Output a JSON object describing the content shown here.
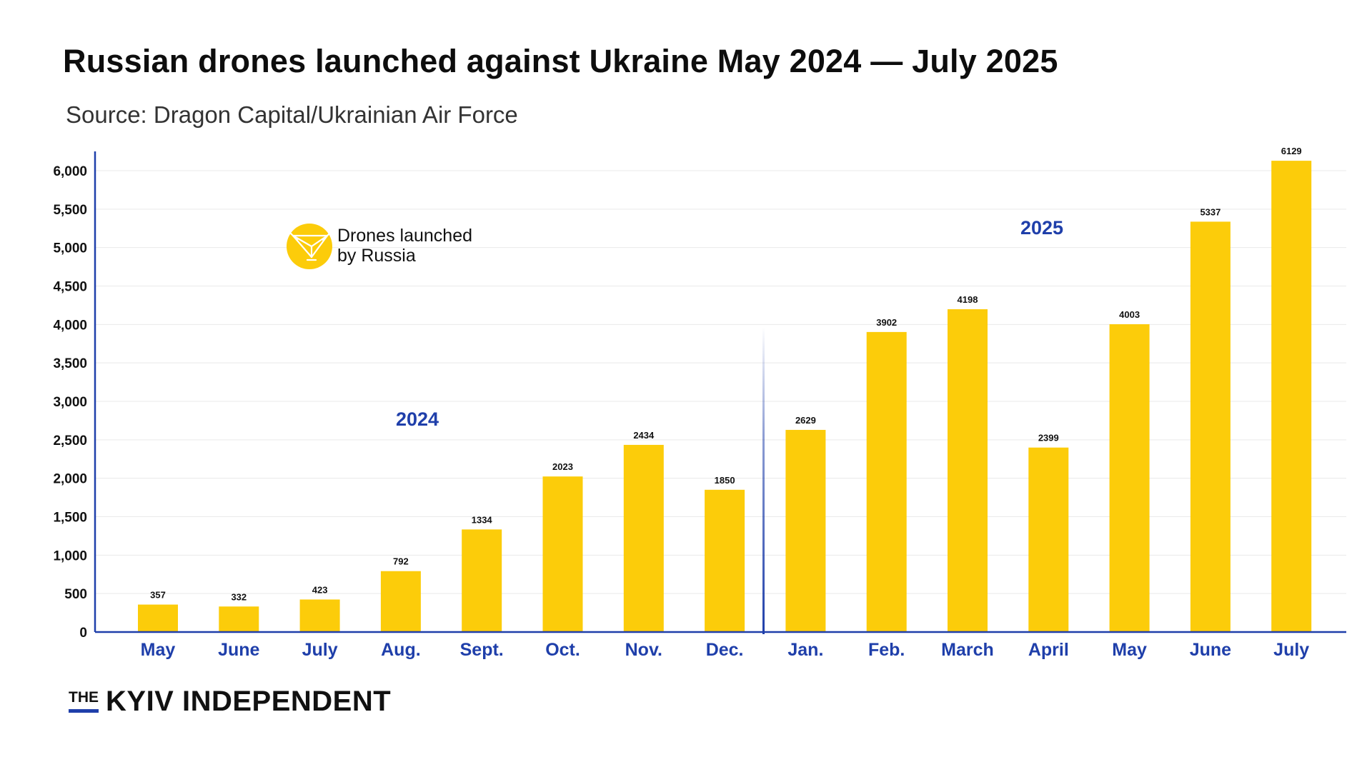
{
  "chart_data": {
    "type": "bar",
    "title": "Russian drones launched against Ukraine May 2024 — July 2025",
    "subtitle": "Source: Dragon Capital/Ukrainian Air Force",
    "categories": [
      "May",
      "June",
      "July",
      "Aug.",
      "Sept.",
      "Oct.",
      "Nov.",
      "Dec.",
      "Jan.",
      "Feb.",
      "March",
      "April",
      "May",
      "June",
      "July"
    ],
    "series": [
      {
        "name": "Drones launched by Russia",
        "values": [
          357,
          332,
          423,
          792,
          1334,
          2023,
          2434,
          1850,
          2629,
          3902,
          4198,
          2399,
          4003,
          5337,
          6129
        ]
      }
    ],
    "data_labels": [
      "357",
      "332",
      "423",
      "792",
      "1334",
      "2023",
      "2434",
      "1850",
      "2629",
      "3902",
      "4198",
      "2399",
      "4003",
      "5337",
      "6129"
    ],
    "y_ticks": [
      0,
      500,
      1000,
      1500,
      2000,
      2500,
      3000,
      3500,
      4000,
      4500,
      5000,
      5500,
      6000
    ],
    "y_tick_labels": [
      "0",
      "500",
      "1,000",
      "1,500",
      "2,000",
      "2,500",
      "3,000",
      "3,500",
      "4,000",
      "4,500",
      "5,000",
      "5,500",
      "6,000"
    ],
    "ylim": [
      0,
      6300
    ],
    "grid": true,
    "legend": {
      "label_line1": "Drones launched",
      "label_line2": "by Russia",
      "position": "top-left",
      "icon": "drone-icon"
    },
    "group_labels": [
      "2024",
      "2025"
    ],
    "colors": {
      "bar": "#fccc0a",
      "axis": "#1f3faa",
      "category_label": "#1f3faa",
      "group_label": "#1f3faa",
      "grid": "#e9e9e9",
      "text": "#111111"
    }
  },
  "branding": {
    "the": "THE",
    "name": "KYIV INDEPENDENT"
  }
}
